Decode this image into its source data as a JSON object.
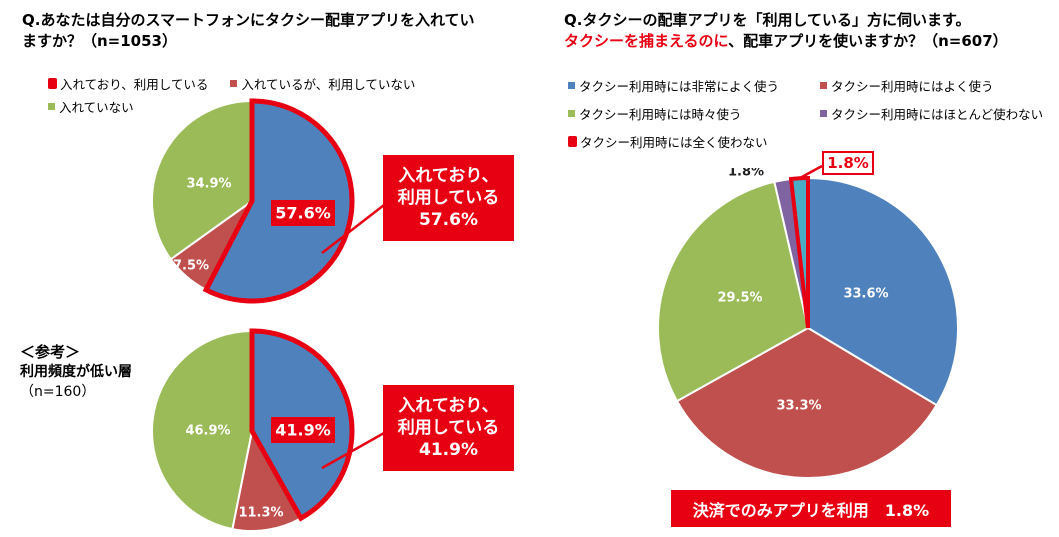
{
  "left": {
    "question_line1": "Q.あなたは自分のスマートフォンにタクシー配車アプリを入れてい",
    "question_line2": "ますか？（n=1053）",
    "legend": [
      {
        "label": "入れており、利用している",
        "color": "#e60012"
      },
      {
        "label": "入れているが、利用していない",
        "color": "#c0504d"
      },
      {
        "label": "入れていない",
        "color": "#9bbb59"
      }
    ],
    "callout_main": {
      "line1": "入れており、",
      "line2": "利用している",
      "line3": "57.6%"
    },
    "reference": {
      "line1": "＜参考＞",
      "line2": "利用頻度が低い層",
      "line3": "（n=160）"
    },
    "callout_ref": {
      "line1": "入れており、",
      "line2": "利用している",
      "line3": "41.9%"
    }
  },
  "right": {
    "question_line1": "Q.タクシーの配車アプリを「利用している」方に伺います。",
    "question_red": "タクシーを捕まえるのに",
    "question_rest": "、配車アプリを使いますか？（n=607）",
    "legend": [
      {
        "label": "タクシー利用時には非常によく使う",
        "color": "#4f81bd"
      },
      {
        "label": "タクシー利用時にはよく使う",
        "color": "#c0504d"
      },
      {
        "label": "タクシー利用時には時々使う",
        "color": "#9bbb59"
      },
      {
        "label": "タクシー利用時にはほとんど使わない",
        "color": "#8064a2"
      },
      {
        "label": "タクシー利用時には全く使わない",
        "color": "#e60012"
      }
    ],
    "highlight_label": "1.8%",
    "bottom_banner": "決済でのみアプリを利用　1.8%"
  },
  "chart_data": [
    {
      "type": "pie",
      "title": "Q.あなたは自分のスマートフォンにタクシー配車アプリを入れていますか？（n=1053）",
      "slices": [
        {
          "name": "入れており、利用している",
          "value": 57.6,
          "label": "57.6%",
          "color": "#4f81bd"
        },
        {
          "name": "入れているが、利用していない",
          "value": 7.5,
          "label": "7.5%",
          "color": "#c0504d"
        },
        {
          "name": "入れていない",
          "value": 34.9,
          "label": "34.9%",
          "color": "#9bbb59"
        }
      ],
      "highlight_slice": 0
    },
    {
      "type": "pie",
      "title": "＜参考＞利用頻度が低い層（n=160）",
      "slices": [
        {
          "name": "入れており、利用している",
          "value": 41.9,
          "label": "41.9%",
          "color": "#4f81bd"
        },
        {
          "name": "入れているが、利用していない",
          "value": 11.3,
          "label": "11.3%",
          "color": "#c0504d"
        },
        {
          "name": "入れていない",
          "value": 46.9,
          "label": "46.9%",
          "color": "#9bbb59"
        }
      ],
      "highlight_slice": 0
    },
    {
      "type": "pie",
      "title": "Q.タクシーの配車アプリを「利用している」方に伺います。タクシーを捕まえるのに、配車アプリを使いますか？（n=607）",
      "slices": [
        {
          "name": "タクシー利用時には非常によく使う",
          "value": 33.6,
          "label": "33.6%",
          "color": "#4f81bd"
        },
        {
          "name": "タクシー利用時にはよく使う",
          "value": 33.3,
          "label": "33.3%",
          "color": "#c0504d"
        },
        {
          "name": "タクシー利用時には時々使う",
          "value": 29.5,
          "label": "29.5%",
          "color": "#9bbb59"
        },
        {
          "name": "タクシー利用時にはほとんど使わない",
          "value": 1.8,
          "label": "1.8%",
          "color": "#8064a2"
        },
        {
          "name": "タクシー利用時には全く使わない",
          "value": 1.8,
          "label": "",
          "color": "#4bacc6"
        }
      ],
      "highlight_slice": 4
    }
  ]
}
